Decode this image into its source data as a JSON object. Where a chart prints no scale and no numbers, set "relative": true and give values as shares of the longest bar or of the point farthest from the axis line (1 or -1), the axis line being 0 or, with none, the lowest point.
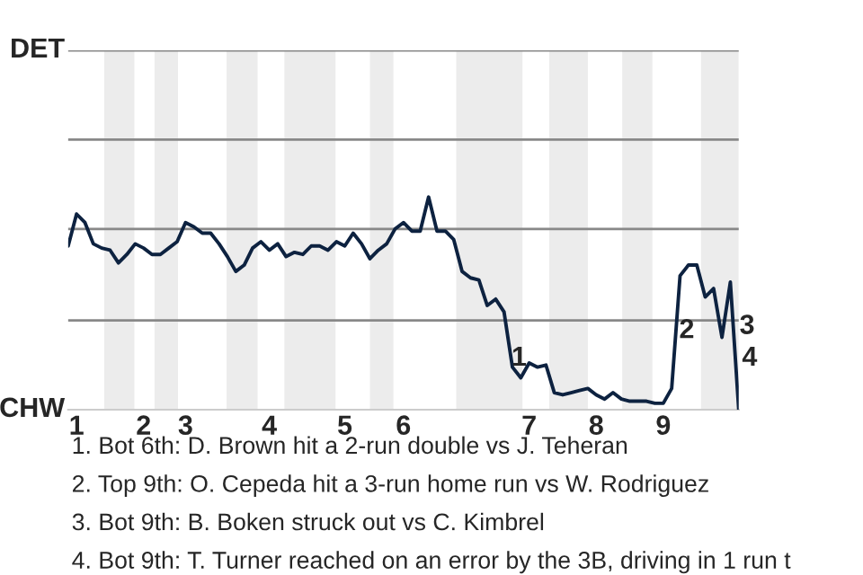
{
  "chart_data": {
    "type": "line",
    "relative": true,
    "categories": [
      null,
      "1",
      null,
      null,
      null,
      null,
      null,
      null,
      null,
      "2",
      null,
      null,
      null,
      null,
      "3",
      null,
      null,
      null,
      null,
      null,
      null,
      null,
      null,
      null,
      "4",
      null,
      null,
      null,
      null,
      null,
      null,
      null,
      null,
      "5",
      null,
      null,
      null,
      null,
      null,
      null,
      "6",
      null,
      null,
      null,
      null,
      null,
      null,
      null,
      null,
      null,
      null,
      null,
      null,
      null,
      null,
      "7",
      null,
      null,
      null,
      null,
      null,
      null,
      null,
      "8",
      null,
      null,
      null,
      null,
      null,
      null,
      null,
      "9",
      null,
      null,
      null,
      null,
      null,
      null,
      null,
      null,
      null
    ],
    "series": [
      {
        "color": "#0d2240",
        "values": [
          0.77,
          0.92,
          0.88,
          0.78,
          0.76,
          0.75,
          0.69,
          0.73,
          0.78,
          0.76,
          0.73,
          0.73,
          0.76,
          0.79,
          0.88,
          0.86,
          0.83,
          0.83,
          0.78,
          0.72,
          0.65,
          0.68,
          0.76,
          0.79,
          0.75,
          0.78,
          0.72,
          0.74,
          0.73,
          0.77,
          0.77,
          0.75,
          0.79,
          0.77,
          0.83,
          0.78,
          0.71,
          0.75,
          0.78,
          0.85,
          0.88,
          0.84,
          0.84,
          1,
          0.84,
          0.84,
          0.8,
          0.65,
          0.62,
          0.61,
          0.49,
          0.52,
          0.46,
          0.2,
          0.15,
          0.22,
          0.2,
          0.21,
          0.08,
          0.07,
          0.08,
          0.09,
          0.1,
          0.07,
          0.05,
          0.08,
          0.05,
          0.04,
          0.04,
          0.04,
          0.03,
          0.03,
          0.1,
          0.63,
          0.68,
          0.68,
          0.53,
          0.57,
          0.34,
          0.6,
          0
        ]
      }
    ],
    "ref_lines": [
      {
        "axis": "y",
        "value": 0.42,
        "color": "#888888"
      },
      {
        "axis": "y",
        "value": 0.85,
        "color": "#888888"
      },
      {
        "axis": "y",
        "value": 1.27,
        "color": "#888888"
      },
      {
        "axis": "y",
        "value": 1.69,
        "color": "#888888"
      }
    ],
    "annotations": [
      "DET",
      "CHW",
      "1",
      "2",
      "3",
      "4",
      "1. Bot 6th: D. Brown hit a 2-run double vs J. Teheran",
      "2. Top 9th: O. Cepeda hit a 3-run home run vs W. Rodriguez",
      "3. Bot 9th: B. Boken struck out vs C. Kimbrel",
      "4. Bot 9th: T. Turner reached on an error by the 3B, driving in 1 run t"
    ]
  }
}
